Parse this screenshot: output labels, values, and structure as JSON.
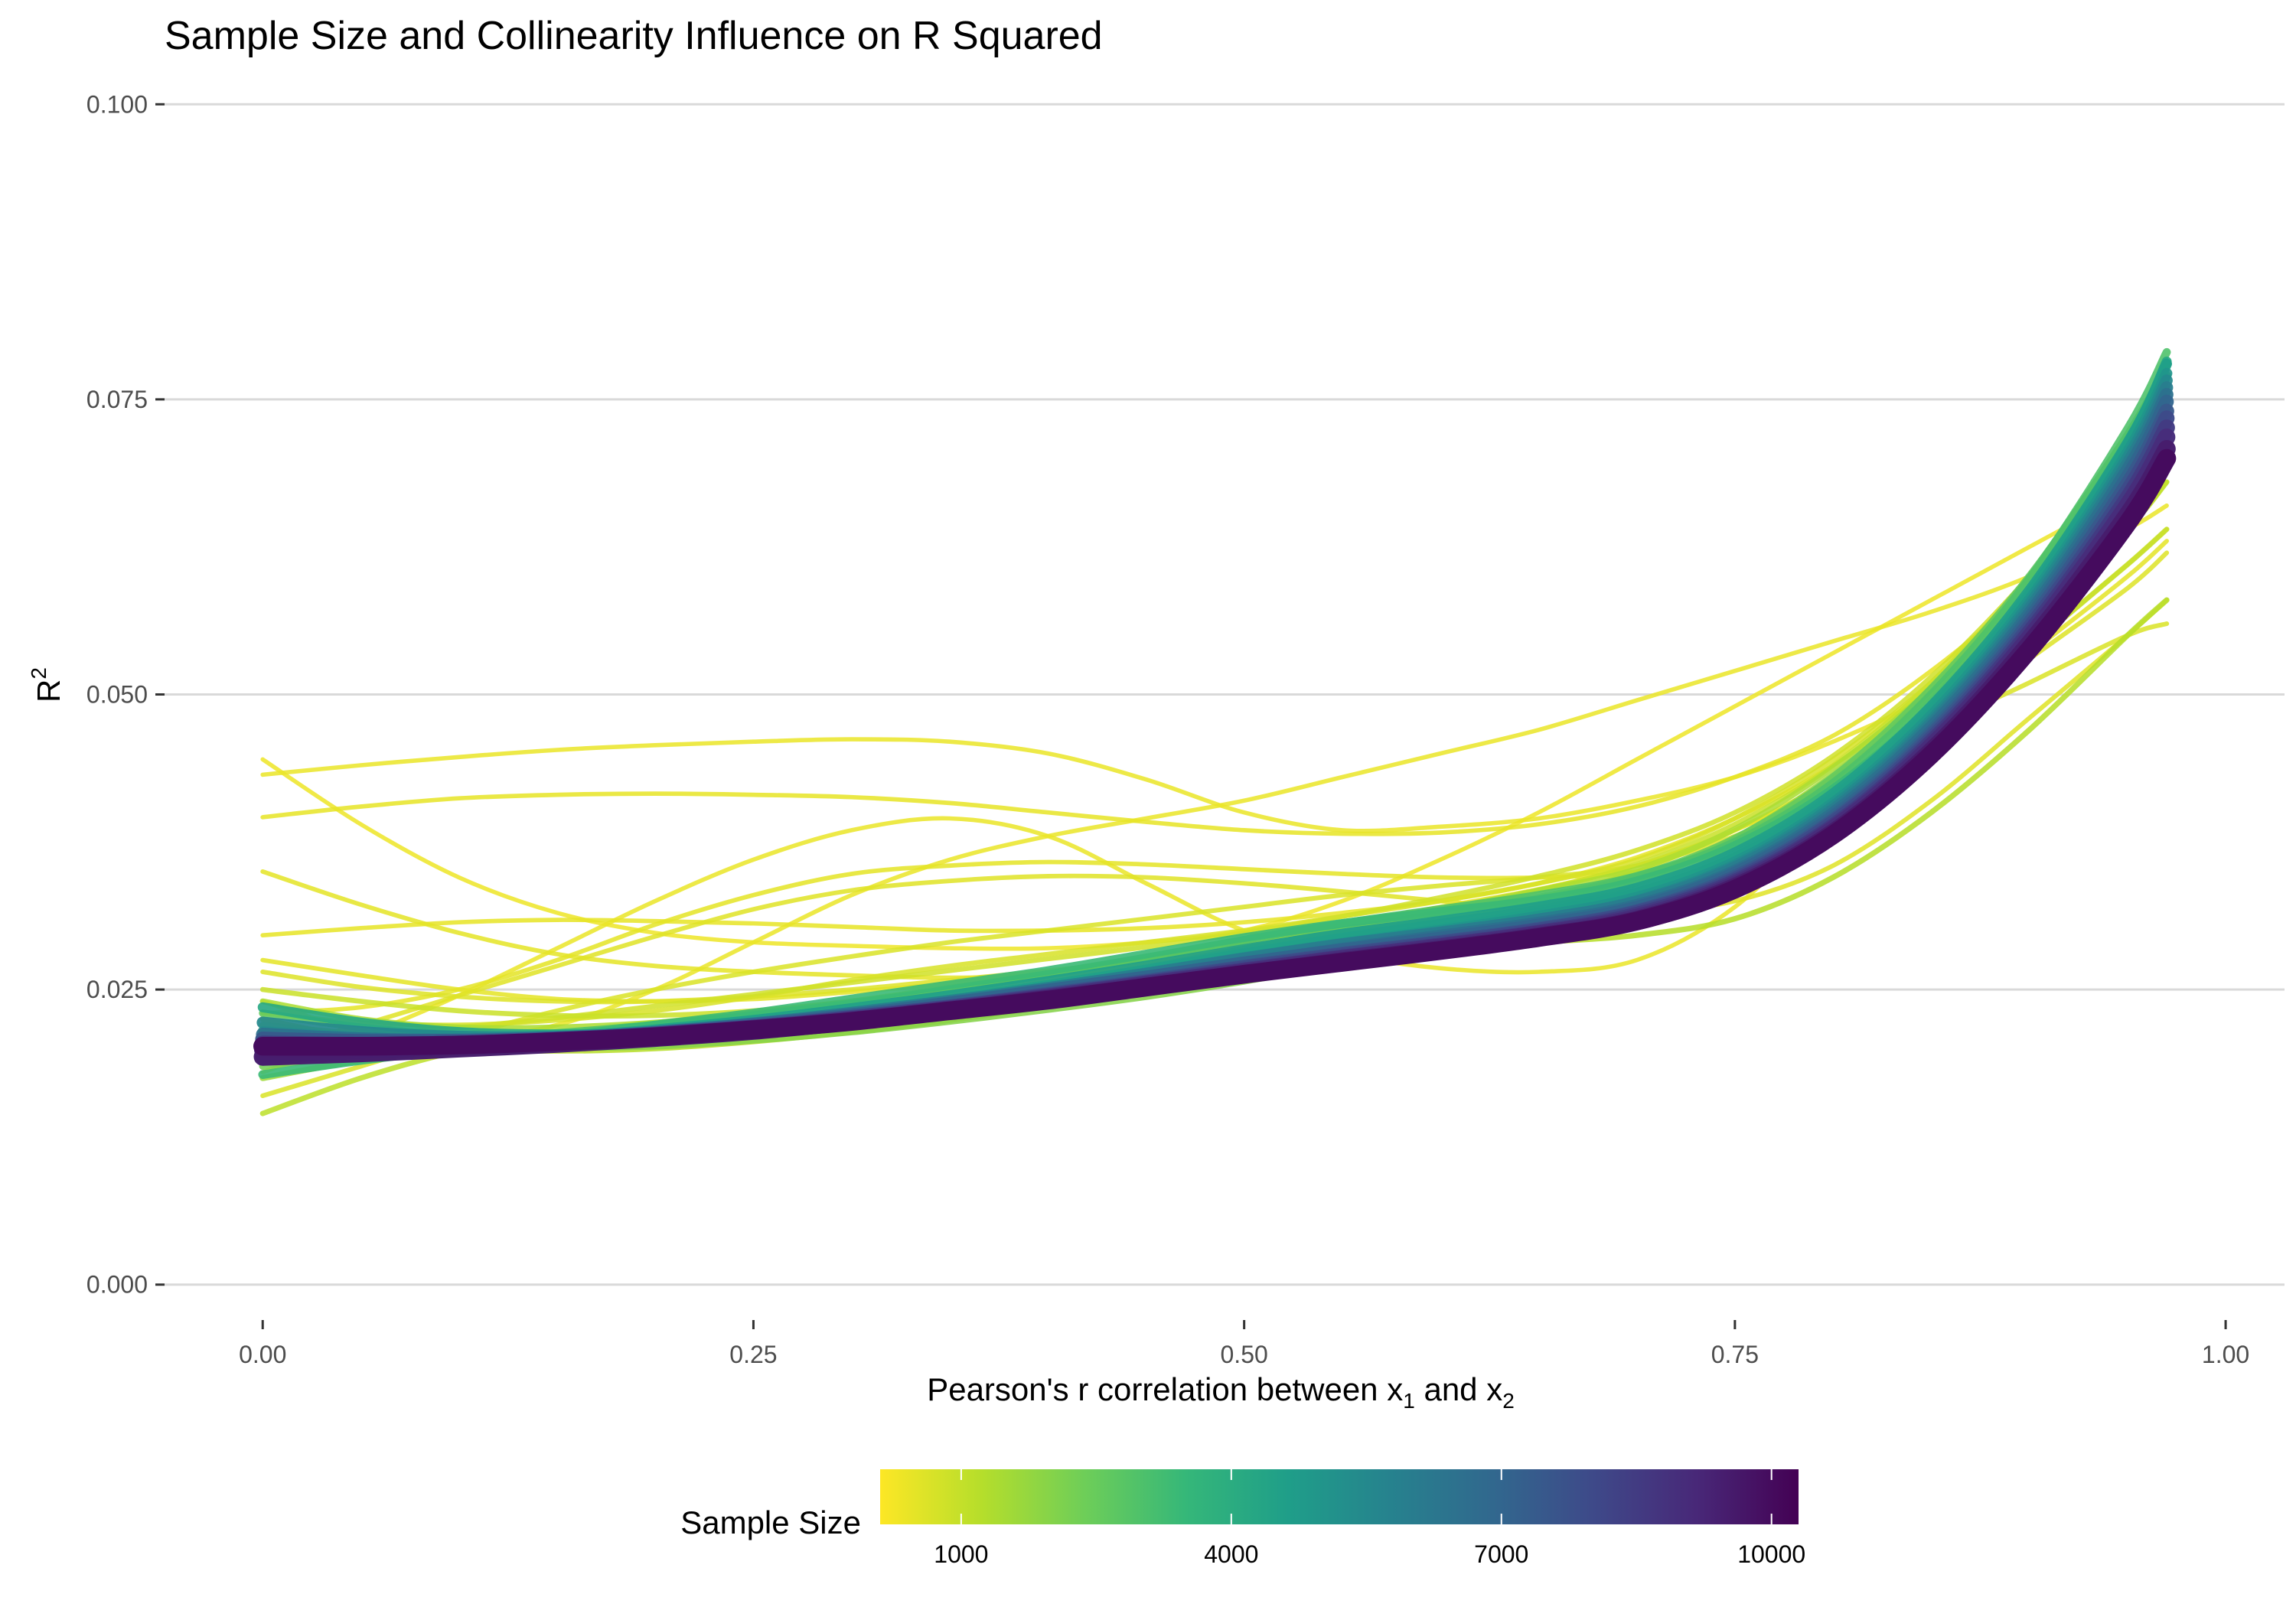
{
  "chart_data": {
    "type": "line",
    "title": "Sample Size and Collinearity Influence on R Squared",
    "xlabel": {
      "main": "Pearson's r correlation between x",
      "sub1": "1",
      "mid": " and x",
      "sub2": "2"
    },
    "ylabel": {
      "base": "R",
      "sup": "2"
    },
    "xlim": [
      -0.05,
      1.03
    ],
    "ylim": [
      -0.003,
      0.103
    ],
    "x_ticks": [
      0.0,
      0.25,
      0.5,
      0.75,
      1.0
    ],
    "x_tick_labels": [
      "0.00",
      "0.25",
      "0.50",
      "0.75",
      "1.00"
    ],
    "y_ticks": [
      0.0,
      0.025,
      0.05,
      0.075,
      0.1
    ],
    "y_tick_labels": [
      "0.000",
      "0.025",
      "0.050",
      "0.075",
      "0.100"
    ],
    "grid": "horizontal-major",
    "legend": {
      "title": "Sample Size",
      "position": "bottom",
      "type": "colorbar",
      "range": [
        100,
        10300
      ],
      "ticks": [
        1000,
        4000,
        7000,
        10000
      ],
      "tick_labels": [
        "1000",
        "4000",
        "7000",
        "10000"
      ],
      "colors": [
        "#fde725",
        "#b5de2b",
        "#6ece58",
        "#35b779",
        "#1f9e89",
        "#26828e",
        "#31688e",
        "#3e4989",
        "#482878",
        "#440154"
      ]
    },
    "x": [
      0.0,
      0.05,
      0.1,
      0.15,
      0.2,
      0.25,
      0.3,
      0.35,
      0.4,
      0.45,
      0.5,
      0.55,
      0.6,
      0.65,
      0.7,
      0.75,
      0.8,
      0.85,
      0.9,
      0.95,
      0.97
    ],
    "series": [
      {
        "size": 400,
        "values": [
          0.0432,
          0.044,
          0.0447,
          0.0453,
          0.0457,
          0.046,
          0.0462,
          0.046,
          0.045,
          0.0428,
          0.04,
          0.0385,
          0.0388,
          0.0395,
          0.041,
          0.043,
          0.046,
          0.05,
          0.056,
          0.064,
          0.068
        ]
      },
      {
        "size": 450,
        "values": [
          0.0396,
          0.0405,
          0.0412,
          0.0415,
          0.0416,
          0.0415,
          0.0413,
          0.0408,
          0.04,
          0.0392,
          0.0385,
          0.0382,
          0.0383,
          0.039,
          0.0405,
          0.043,
          0.0465,
          0.052,
          0.059,
          0.068,
          0.072
        ]
      },
      {
        "size": 350,
        "values": [
          0.0445,
          0.039,
          0.0345,
          0.0315,
          0.0298,
          0.029,
          0.0287,
          0.0285,
          0.0285,
          0.029,
          0.03,
          0.0325,
          0.036,
          0.04,
          0.0445,
          0.049,
          0.0535,
          0.058,
          0.0625,
          0.067,
          0.069
        ]
      },
      {
        "size": 500,
        "values": [
          0.035,
          0.0322,
          0.0298,
          0.028,
          0.027,
          0.0265,
          0.0262,
          0.026,
          0.0262,
          0.0268,
          0.028,
          0.0295,
          0.031,
          0.0328,
          0.035,
          0.0385,
          0.043,
          0.05,
          0.059,
          0.07,
          0.074
        ]
      },
      {
        "size": 450,
        "values": [
          0.0296,
          0.0302,
          0.0307,
          0.0309,
          0.0308,
          0.0306,
          0.0303,
          0.03,
          0.03,
          0.0302,
          0.0307,
          0.0315,
          0.0325,
          0.034,
          0.0362,
          0.0395,
          0.044,
          0.05,
          0.058,
          0.068,
          0.073
        ]
      },
      {
        "size": 400,
        "values": [
          0.018,
          0.021,
          0.0245,
          0.0285,
          0.0325,
          0.036,
          0.0385,
          0.0395,
          0.038,
          0.034,
          0.03,
          0.028,
          0.0268,
          0.0265,
          0.0275,
          0.032,
          0.04,
          0.047,
          0.054,
          0.061,
          0.064
        ]
      },
      {
        "size": 500,
        "values": [
          0.023,
          0.0235,
          0.025,
          0.0275,
          0.0305,
          0.033,
          0.0348,
          0.0355,
          0.0358,
          0.0356,
          0.0352,
          0.0348,
          0.0345,
          0.0345,
          0.035,
          0.037,
          0.041,
          0.047,
          0.055,
          0.065,
          0.07
        ]
      },
      {
        "size": 550,
        "values": [
          0.02,
          0.022,
          0.0245,
          0.027,
          0.0295,
          0.0318,
          0.0334,
          0.0342,
          0.0346,
          0.0345,
          0.034,
          0.0333,
          0.0325,
          0.0318,
          0.0315,
          0.0325,
          0.0355,
          0.041,
          0.048,
          0.055,
          0.058
        ]
      },
      {
        "size": 400,
        "values": [
          0.024,
          0.0215,
          0.0208,
          0.022,
          0.025,
          0.029,
          0.033,
          0.036,
          0.038,
          0.0395,
          0.041,
          0.043,
          0.045,
          0.047,
          0.0495,
          0.052,
          0.0545,
          0.057,
          0.06,
          0.064,
          0.066
        ]
      },
      {
        "size": 500,
        "values": [
          0.0275,
          0.0262,
          0.025,
          0.0242,
          0.024,
          0.0242,
          0.0248,
          0.0255,
          0.0262,
          0.0272,
          0.0285,
          0.0305,
          0.032,
          0.0335,
          0.0355,
          0.0385,
          0.0425,
          0.0475,
          0.0535,
          0.06,
          0.063
        ]
      },
      {
        "size": 600,
        "values": [
          0.0265,
          0.0252,
          0.0244,
          0.024,
          0.024,
          0.0244,
          0.025,
          0.0258,
          0.0266,
          0.0275,
          0.0286,
          0.0298,
          0.031,
          0.0325,
          0.0345,
          0.0378,
          0.042,
          0.047,
          0.053,
          0.059,
          0.062
        ]
      },
      {
        "size": 650,
        "values": [
          0.016,
          0.0185,
          0.021,
          0.0232,
          0.025,
          0.0265,
          0.0278,
          0.029,
          0.03,
          0.031,
          0.032,
          0.033,
          0.0338,
          0.0345,
          0.0355,
          0.038,
          0.042,
          0.047,
          0.051,
          0.055,
          0.056
        ]
      },
      {
        "size": 700,
        "values": [
          0.023,
          0.0222,
          0.022,
          0.0224,
          0.0232,
          0.0244,
          0.0258,
          0.027,
          0.028,
          0.029,
          0.03,
          0.0312,
          0.0325,
          0.034,
          0.036,
          0.0395,
          0.0445,
          0.051,
          0.059,
          0.068,
          0.072
        ]
      },
      {
        "size": 800,
        "values": [
          0.021,
          0.0212,
          0.0218,
          0.0226,
          0.0236,
          0.0246,
          0.0256,
          0.0266,
          0.0276,
          0.0286,
          0.0298,
          0.0312,
          0.0328,
          0.0346,
          0.0368,
          0.04,
          0.0448,
          0.0515,
          0.06,
          0.07,
          0.075
        ]
      },
      {
        "size": 900,
        "values": [
          0.025,
          0.024,
          0.0232,
          0.0228,
          0.0228,
          0.0232,
          0.024,
          0.025,
          0.026,
          0.0272,
          0.0286,
          0.03,
          0.0316,
          0.0334,
          0.0356,
          0.039,
          0.044,
          0.051,
          0.06,
          0.071,
          0.076
        ]
      },
      {
        "size": 1000,
        "values": [
          0.0195,
          0.02,
          0.0205,
          0.021,
          0.0218,
          0.0228,
          0.024,
          0.0252,
          0.0264,
          0.0276,
          0.0288,
          0.03,
          0.0312,
          0.0326,
          0.0344,
          0.0372,
          0.0415,
          0.047,
          0.054,
          0.061,
          0.064
        ]
      },
      {
        "size": 1100,
        "values": [
          0.0145,
          0.0175,
          0.0198,
          0.0212,
          0.0222,
          0.023,
          0.0238,
          0.0246,
          0.0255,
          0.0265,
          0.0276,
          0.029,
          0.0305,
          0.0322,
          0.0345,
          0.0378,
          0.0425,
          0.0485,
          0.056,
          0.064,
          0.068
        ]
      },
      {
        "size": 1200,
        "values": [
          0.0225,
          0.0208,
          0.02,
          0.0198,
          0.02,
          0.0206,
          0.0214,
          0.0224,
          0.0236,
          0.025,
          0.0264,
          0.0276,
          0.0284,
          0.029,
          0.0296,
          0.031,
          0.0345,
          0.04,
          0.047,
          0.055,
          0.058
        ]
      },
      {
        "size": 1400,
        "values": [
          0.024,
          0.0225,
          0.0218,
          0.0218,
          0.0222,
          0.023,
          0.024,
          0.025,
          0.0262,
          0.0276,
          0.029,
          0.0304,
          0.0318,
          0.0334,
          0.0352,
          0.0386,
          0.0438,
          0.0505,
          0.059,
          0.069,
          0.074
        ]
      },
      {
        "size": 1600,
        "values": [
          0.0175,
          0.019,
          0.02,
          0.0208,
          0.0216,
          0.0224,
          0.0232,
          0.024,
          0.0248,
          0.0258,
          0.027,
          0.0284,
          0.03,
          0.0318,
          0.034,
          0.0378,
          0.0432,
          0.05,
          0.0585,
          0.0685,
          0.073
        ]
      },
      {
        "size": 1800,
        "values": [
          0.022,
          0.0212,
          0.0208,
          0.0208,
          0.0212,
          0.022,
          0.023,
          0.0242,
          0.0255,
          0.0268,
          0.028,
          0.029,
          0.0298,
          0.0308,
          0.0322,
          0.035,
          0.04,
          0.047,
          0.056,
          0.067,
          0.072
        ]
      },
      {
        "size": 2000,
        "values": [
          0.0215,
          0.0208,
          0.0203,
          0.0201,
          0.0202,
          0.0207,
          0.0214,
          0.0223,
          0.0233,
          0.0244,
          0.0257,
          0.0272,
          0.0288,
          0.0306,
          0.0328,
          0.036,
          0.041,
          0.048,
          0.057,
          0.068,
          0.073
        ]
      },
      {
        "size": 2300,
        "values": [
          0.0185,
          0.0195,
          0.0202,
          0.0208,
          0.0214,
          0.0222,
          0.0232,
          0.0243,
          0.0255,
          0.0268,
          0.0282,
          0.0296,
          0.031,
          0.0326,
          0.0345,
          0.0376,
          0.0425,
          0.0495,
          0.0585,
          0.07,
          0.0755
        ]
      },
      {
        "size": 2600,
        "values": [
          0.023,
          0.0218,
          0.0212,
          0.0212,
          0.0216,
          0.0223,
          0.0232,
          0.0242,
          0.0254,
          0.0268,
          0.0284,
          0.03,
          0.0314,
          0.0328,
          0.0346,
          0.0378,
          0.043,
          0.0505,
          0.06,
          0.072,
          0.078
        ]
      },
      {
        "size": 3000,
        "values": [
          0.02,
          0.0204,
          0.0208,
          0.0213,
          0.022,
          0.0228,
          0.0238,
          0.025,
          0.0263,
          0.0277,
          0.0292,
          0.0306,
          0.0318,
          0.033,
          0.0346,
          0.0375,
          0.0425,
          0.05,
          0.0598,
          0.0725,
          0.079
        ]
      },
      {
        "size": 3400,
        "values": [
          0.0178,
          0.019,
          0.02,
          0.021,
          0.022,
          0.023,
          0.0242,
          0.0254,
          0.0266,
          0.028,
          0.0294,
          0.0306,
          0.0316,
          0.0326,
          0.0342,
          0.0372,
          0.042,
          0.049,
          0.0585,
          0.0705,
          0.077
        ]
      },
      {
        "size": 3800,
        "values": [
          0.0215,
          0.021,
          0.0208,
          0.021,
          0.0215,
          0.0222,
          0.0231,
          0.0242,
          0.0254,
          0.0267,
          0.0281,
          0.0294,
          0.0306,
          0.0318,
          0.0334,
          0.0364,
          0.0414,
          0.0488,
          0.0586,
          0.0712,
          0.078
        ]
      },
      {
        "size": 4200,
        "values": [
          0.0235,
          0.0222,
          0.0214,
          0.0212,
          0.0214,
          0.022,
          0.0228,
          0.0238,
          0.025,
          0.0263,
          0.0277,
          0.029,
          0.0302,
          0.0315,
          0.0332,
          0.0362,
          0.0412,
          0.0486,
          0.0585,
          0.0712,
          0.0782
        ]
      },
      {
        "size": 4600,
        "values": [
          0.019,
          0.0197,
          0.0203,
          0.0209,
          0.0216,
          0.0224,
          0.0234,
          0.0245,
          0.0257,
          0.027,
          0.0284,
          0.0297,
          0.0308,
          0.032,
          0.0336,
          0.0366,
          0.0416,
          0.049,
          0.0588,
          0.0713,
          0.078
        ]
      },
      {
        "size": 5000,
        "values": [
          0.0205,
          0.0204,
          0.0205,
          0.0208,
          0.0214,
          0.0221,
          0.023,
          0.024,
          0.0251,
          0.0264,
          0.0277,
          0.0289,
          0.03,
          0.0312,
          0.0328,
          0.0358,
          0.0408,
          0.0482,
          0.058,
          0.0705,
          0.0772
        ]
      },
      {
        "size": 5500,
        "values": [
          0.0222,
          0.0214,
          0.021,
          0.021,
          0.0214,
          0.022,
          0.0228,
          0.0238,
          0.0249,
          0.0261,
          0.0274,
          0.0286,
          0.0297,
          0.0309,
          0.0325,
          0.0355,
          0.0405,
          0.0478,
          0.0576,
          0.07,
          0.0766
        ]
      },
      {
        "size": 6000,
        "values": [
          0.0196,
          0.0199,
          0.0203,
          0.0208,
          0.0214,
          0.0221,
          0.023,
          0.024,
          0.0251,
          0.0263,
          0.0276,
          0.0288,
          0.0298,
          0.0309,
          0.0324,
          0.0353,
          0.0402,
          0.0475,
          0.0572,
          0.0695,
          0.076
        ]
      },
      {
        "size": 6500,
        "values": [
          0.0212,
          0.0208,
          0.0207,
          0.0209,
          0.0213,
          0.0219,
          0.0227,
          0.0237,
          0.0248,
          0.026,
          0.0272,
          0.0284,
          0.0295,
          0.0306,
          0.0321,
          0.035,
          0.0399,
          0.0472,
          0.0568,
          0.069,
          0.0754
        ]
      },
      {
        "size": 7000,
        "values": [
          0.02,
          0.0201,
          0.0204,
          0.0208,
          0.0213,
          0.022,
          0.0228,
          0.0238,
          0.0249,
          0.026,
          0.0272,
          0.0283,
          0.0293,
          0.0304,
          0.0319,
          0.0348,
          0.0396,
          0.0468,
          0.0564,
          0.0684,
          0.0748
        ]
      },
      {
        "size": 7500,
        "values": [
          0.0208,
          0.0206,
          0.0206,
          0.0208,
          0.0212,
          0.0218,
          0.0226,
          0.0235,
          0.0246,
          0.0257,
          0.0269,
          0.028,
          0.029,
          0.0301,
          0.0316,
          0.0345,
          0.0393,
          0.0465,
          0.056,
          0.0678,
          0.074
        ]
      },
      {
        "size": 8000,
        "values": [
          0.0195,
          0.0198,
          0.0202,
          0.0206,
          0.0212,
          0.0218,
          0.0226,
          0.0235,
          0.0245,
          0.0256,
          0.0268,
          0.0279,
          0.0289,
          0.03,
          0.0315,
          0.0343,
          0.0391,
          0.0462,
          0.0556,
          0.0672,
          0.0734
        ]
      },
      {
        "size": 8500,
        "values": [
          0.0204,
          0.0203,
          0.0204,
          0.0207,
          0.0211,
          0.0217,
          0.0225,
          0.0234,
          0.0244,
          0.0255,
          0.0266,
          0.0277,
          0.0287,
          0.0298,
          0.0313,
          0.0341,
          0.0388,
          0.0459,
          0.0552,
          0.0666,
          0.0726
        ]
      },
      {
        "size": 9000,
        "values": [
          0.0199,
          0.02,
          0.0203,
          0.0206,
          0.0211,
          0.0217,
          0.0224,
          0.0233,
          0.0243,
          0.0254,
          0.0265,
          0.0276,
          0.0286,
          0.0297,
          0.0311,
          0.0339,
          0.0386,
          0.0456,
          0.0548,
          0.066,
          0.0718
        ]
      },
      {
        "size": 9500,
        "values": [
          0.0193,
          0.0196,
          0.02,
          0.0204,
          0.0209,
          0.0215,
          0.0223,
          0.0232,
          0.0242,
          0.0252,
          0.0263,
          0.0274,
          0.0284,
          0.0295,
          0.0309,
          0.0337,
          0.0383,
          0.0452,
          0.0543,
          0.0652,
          0.0708
        ]
      },
      {
        "size": 10000,
        "values": [
          0.0202,
          0.0202,
          0.0203,
          0.0206,
          0.021,
          0.0216,
          0.0223,
          0.0232,
          0.0241,
          0.0252,
          0.0263,
          0.0273,
          0.0283,
          0.0294,
          0.0308,
          0.0335,
          0.0381,
          0.0449,
          0.0538,
          0.0645,
          0.07
        ]
      }
    ]
  }
}
